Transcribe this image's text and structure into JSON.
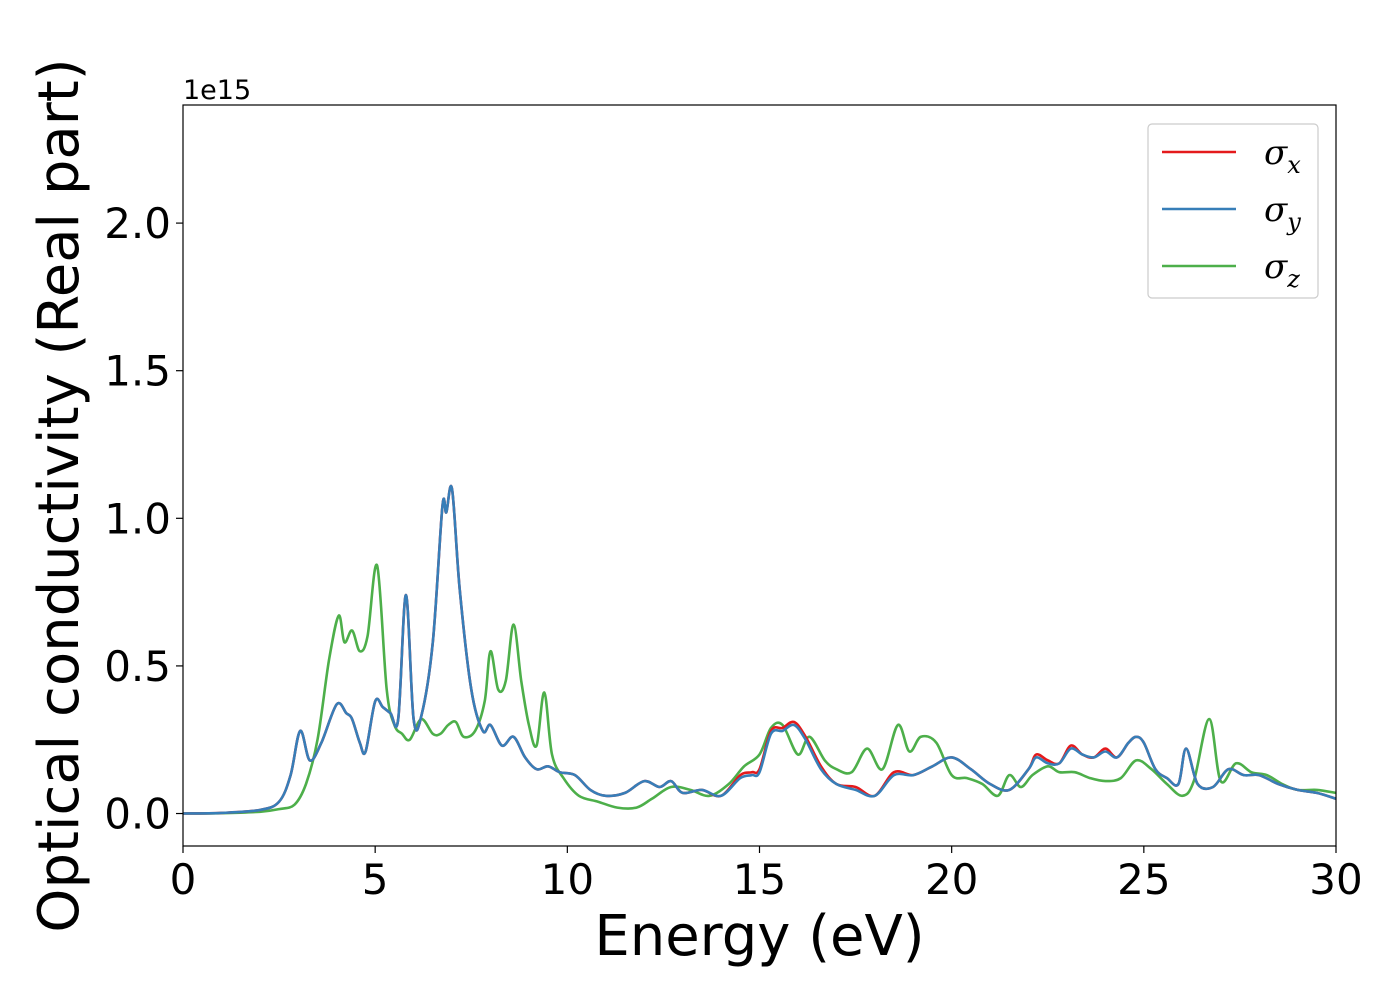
{
  "chart_data": {
    "type": "line",
    "xlabel": "Energy (eV)",
    "ylabel": "Optical conductivity (Real part)",
    "y_offset_label": "1e15",
    "xlim": [
      0,
      30
    ],
    "ylim": [
      -0.11,
      2.4
    ],
    "xticks": [
      0,
      5,
      10,
      15,
      20,
      25,
      30
    ],
    "xtick_labels": [
      "0",
      "5",
      "10",
      "15",
      "20",
      "25",
      "30"
    ],
    "yticks": [
      0.0,
      0.5,
      1.0,
      1.5,
      2.0
    ],
    "ytick_labels": [
      "0.0",
      "0.5",
      "1.0",
      "1.5",
      "2.0"
    ],
    "grid": false,
    "legend_position": "top-right",
    "series": [
      {
        "name": "σx",
        "legend_symbol": "σ",
        "legend_sub": "x",
        "color": "#e41a1c",
        "x": [
          0,
          1,
          2,
          2.5,
          2.8,
          3.05,
          3.3,
          3.6,
          4.0,
          4.25,
          4.4,
          4.6,
          4.75,
          5.0,
          5.2,
          5.4,
          5.6,
          5.8,
          6.0,
          6.2,
          6.5,
          6.75,
          6.85,
          7.0,
          7.2,
          7.5,
          7.8,
          8.0,
          8.3,
          8.6,
          8.9,
          9.2,
          9.5,
          9.8,
          10.2,
          10.6,
          11.0,
          11.5,
          12.0,
          12.4,
          12.7,
          13.0,
          13.5,
          14.0,
          14.5,
          14.8,
          15.0,
          15.3,
          15.6,
          15.9,
          16.2,
          16.6,
          17.0,
          17.5,
          18.0,
          18.5,
          19.0,
          19.5,
          20.0,
          20.5,
          21.0,
          21.5,
          22.0,
          22.2,
          22.5,
          22.8,
          23.1,
          23.4,
          23.7,
          24.0,
          24.3,
          24.6,
          24.8,
          25.0,
          25.3,
          25.6,
          25.9,
          26.1,
          26.4,
          26.8,
          27.2,
          27.6,
          28.0,
          28.5,
          29.0,
          29.5,
          30.0
        ],
        "y": [
          0.0,
          0.002,
          0.012,
          0.04,
          0.13,
          0.28,
          0.18,
          0.24,
          0.37,
          0.34,
          0.32,
          0.24,
          0.21,
          0.38,
          0.36,
          0.34,
          0.32,
          0.74,
          0.32,
          0.33,
          0.58,
          1.04,
          1.02,
          1.1,
          0.76,
          0.42,
          0.28,
          0.3,
          0.23,
          0.26,
          0.19,
          0.15,
          0.16,
          0.14,
          0.13,
          0.08,
          0.06,
          0.07,
          0.11,
          0.09,
          0.11,
          0.07,
          0.08,
          0.06,
          0.13,
          0.14,
          0.15,
          0.28,
          0.29,
          0.31,
          0.26,
          0.16,
          0.1,
          0.09,
          0.06,
          0.14,
          0.13,
          0.16,
          0.19,
          0.15,
          0.1,
          0.08,
          0.15,
          0.2,
          0.18,
          0.17,
          0.23,
          0.2,
          0.19,
          0.22,
          0.19,
          0.24,
          0.26,
          0.24,
          0.15,
          0.12,
          0.1,
          0.22,
          0.1,
          0.09,
          0.15,
          0.13,
          0.13,
          0.1,
          0.08,
          0.07,
          0.05
        ]
      },
      {
        "name": "σy",
        "legend_symbol": "σ",
        "legend_sub": "y",
        "color": "#377eb8",
        "x": [
          0,
          1,
          2,
          2.5,
          2.8,
          3.05,
          3.3,
          3.6,
          4.0,
          4.25,
          4.4,
          4.6,
          4.75,
          5.0,
          5.2,
          5.4,
          5.6,
          5.8,
          6.0,
          6.2,
          6.5,
          6.75,
          6.85,
          7.0,
          7.2,
          7.5,
          7.8,
          8.0,
          8.3,
          8.6,
          8.9,
          9.2,
          9.5,
          9.8,
          10.2,
          10.6,
          11.0,
          11.5,
          12.0,
          12.4,
          12.7,
          13.0,
          13.5,
          14.0,
          14.5,
          14.8,
          15.0,
          15.3,
          15.6,
          15.9,
          16.2,
          16.6,
          17.0,
          17.5,
          18.0,
          18.5,
          19.0,
          19.5,
          20.0,
          20.5,
          21.0,
          21.5,
          22.0,
          22.2,
          22.5,
          22.8,
          23.1,
          23.4,
          23.7,
          24.0,
          24.3,
          24.6,
          24.8,
          25.0,
          25.3,
          25.6,
          25.9,
          26.1,
          26.4,
          26.8,
          27.2,
          27.6,
          28.0,
          28.5,
          29.0,
          29.5,
          30.0
        ],
        "y": [
          0.0,
          0.002,
          0.012,
          0.04,
          0.13,
          0.28,
          0.18,
          0.24,
          0.37,
          0.34,
          0.32,
          0.24,
          0.21,
          0.38,
          0.36,
          0.34,
          0.32,
          0.74,
          0.32,
          0.33,
          0.58,
          1.04,
          1.02,
          1.1,
          0.76,
          0.42,
          0.28,
          0.3,
          0.23,
          0.26,
          0.19,
          0.15,
          0.16,
          0.14,
          0.13,
          0.08,
          0.06,
          0.07,
          0.11,
          0.09,
          0.11,
          0.07,
          0.08,
          0.06,
          0.12,
          0.13,
          0.14,
          0.27,
          0.28,
          0.3,
          0.25,
          0.15,
          0.1,
          0.08,
          0.06,
          0.13,
          0.13,
          0.16,
          0.19,
          0.15,
          0.1,
          0.08,
          0.15,
          0.19,
          0.17,
          0.17,
          0.22,
          0.2,
          0.19,
          0.21,
          0.19,
          0.24,
          0.26,
          0.24,
          0.15,
          0.12,
          0.1,
          0.22,
          0.1,
          0.09,
          0.15,
          0.13,
          0.13,
          0.1,
          0.08,
          0.07,
          0.05
        ]
      },
      {
        "name": "σz",
        "legend_symbol": "σ",
        "legend_sub": "z",
        "color": "#4daf4a",
        "x": [
          0,
          1,
          2,
          2.5,
          2.9,
          3.2,
          3.5,
          3.8,
          4.05,
          4.2,
          4.4,
          4.6,
          4.8,
          5.05,
          5.3,
          5.5,
          5.7,
          5.9,
          6.2,
          6.5,
          6.7,
          6.9,
          7.1,
          7.3,
          7.6,
          7.85,
          8.0,
          8.2,
          8.4,
          8.6,
          8.8,
          9.0,
          9.2,
          9.4,
          9.6,
          9.9,
          10.3,
          10.8,
          11.3,
          11.8,
          12.2,
          12.7,
          13.2,
          13.7,
          14.2,
          14.6,
          15.0,
          15.3,
          15.6,
          16.0,
          16.3,
          16.7,
          17.0,
          17.4,
          17.8,
          18.2,
          18.6,
          18.9,
          19.2,
          19.6,
          20.0,
          20.4,
          20.8,
          21.2,
          21.5,
          21.8,
          22.1,
          22.5,
          22.8,
          23.2,
          23.6,
          24.0,
          24.4,
          24.8,
          25.2,
          25.6,
          26.0,
          26.3,
          26.7,
          27.0,
          27.4,
          27.8,
          28.2,
          28.6,
          29.0,
          29.5,
          30.0
        ],
        "y": [
          0.0,
          0.001,
          0.006,
          0.015,
          0.03,
          0.1,
          0.25,
          0.52,
          0.67,
          0.58,
          0.62,
          0.55,
          0.6,
          0.84,
          0.42,
          0.3,
          0.27,
          0.25,
          0.32,
          0.27,
          0.27,
          0.3,
          0.31,
          0.26,
          0.28,
          0.38,
          0.55,
          0.42,
          0.45,
          0.64,
          0.45,
          0.3,
          0.23,
          0.41,
          0.2,
          0.12,
          0.06,
          0.04,
          0.02,
          0.02,
          0.05,
          0.09,
          0.08,
          0.06,
          0.1,
          0.16,
          0.2,
          0.29,
          0.3,
          0.2,
          0.26,
          0.18,
          0.15,
          0.14,
          0.22,
          0.15,
          0.3,
          0.21,
          0.26,
          0.24,
          0.13,
          0.12,
          0.1,
          0.06,
          0.13,
          0.09,
          0.13,
          0.16,
          0.14,
          0.14,
          0.12,
          0.11,
          0.12,
          0.18,
          0.15,
          0.1,
          0.06,
          0.11,
          0.32,
          0.11,
          0.17,
          0.14,
          0.13,
          0.1,
          0.08,
          0.08,
          0.07
        ]
      }
    ]
  }
}
